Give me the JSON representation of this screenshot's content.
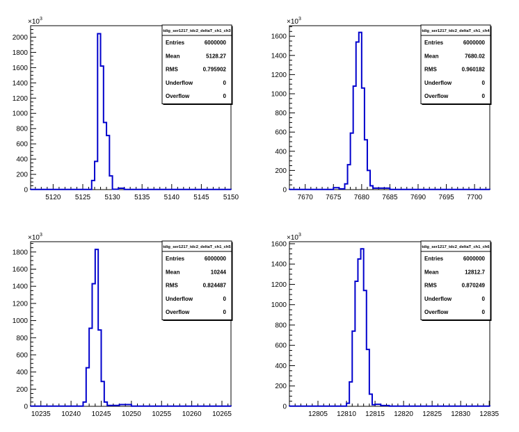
{
  "chart_data": [
    {
      "type": "histogram",
      "stats_title": "tdig_ser1217_tdc2_deltaT_ch1_ch3",
      "stats": [
        {
          "label": "Entries",
          "value": "6000000"
        },
        {
          "label": "Mean",
          "value": "5128.27"
        },
        {
          "label": "RMS",
          "value": "0.795902"
        },
        {
          "label": "Underflow",
          "value": "0"
        },
        {
          "label": "Overflow",
          "value": "0"
        }
      ],
      "y_exponent": "×10",
      "y_exponent_power": "3",
      "xlim": [
        5116.2,
        5150
      ],
      "ylim": [
        0,
        2150
      ],
      "x_ticks": [
        "5120",
        "5125",
        "5130",
        "5135",
        "5140",
        "5145",
        "5150"
      ],
      "y_ticks": [
        "0",
        "200",
        "400",
        "600",
        "800",
        "1000",
        "1200",
        "1400",
        "1600",
        "1800",
        "2000"
      ],
      "bin_edges": [
        5116.2,
        5126.5,
        5127.0,
        5127.5,
        5128.0,
        5128.5,
        5129.0,
        5129.5,
        5130.0,
        5131.0,
        5132.0,
        5150
      ],
      "counts": [
        2,
        120,
        370,
        2045,
        1620,
        880,
        710,
        180,
        4,
        18,
        2
      ]
    },
    {
      "type": "histogram",
      "stats_title": "tdig_ser1217_tdc2_deltaT_ch1_ch4",
      "stats": [
        {
          "label": "Entries",
          "value": "6000000"
        },
        {
          "label": "Mean",
          "value": "7680.02"
        },
        {
          "label": "RMS",
          "value": "0.960182"
        },
        {
          "label": "Underflow",
          "value": "0"
        },
        {
          "label": "Overflow",
          "value": "0"
        }
      ],
      "y_exponent": "×10",
      "y_exponent_power": "3",
      "xlim": [
        7667.2,
        7702.7
      ],
      "ylim": [
        0,
        1710
      ],
      "x_ticks": [
        "7670",
        "7675",
        "7680",
        "7685",
        "7690",
        "7695",
        "7700"
      ],
      "y_ticks": [
        "0",
        "200",
        "400",
        "600",
        "800",
        "1000",
        "1200",
        "1400",
        "1600"
      ],
      "bin_edges": [
        7667.2,
        7675.0,
        7676.0,
        7677.0,
        7677.5,
        7678.0,
        7678.5,
        7679.0,
        7679.5,
        7680.0,
        7680.5,
        7681.0,
        7681.5,
        7682.0,
        7685.0,
        7702.7
      ],
      "counts": [
        2,
        20,
        8,
        60,
        260,
        590,
        1080,
        1540,
        1640,
        1060,
        520,
        200,
        40,
        15,
        2
      ]
    },
    {
      "type": "histogram",
      "stats_title": "tdig_ser1217_tdc2_deltaT_ch1_ch5",
      "stats": [
        {
          "label": "Entries",
          "value": "6000000"
        },
        {
          "label": "Mean",
          "value": "10244"
        },
        {
          "label": "RMS",
          "value": "0.824487"
        },
        {
          "label": "Underflow",
          "value": "0"
        },
        {
          "label": "Overflow",
          "value": "0"
        }
      ],
      "y_exponent": "×10",
      "y_exponent_power": "3",
      "xlim": [
        10233.3,
        10266.5
      ],
      "ylim": [
        0,
        1920
      ],
      "x_ticks": [
        "10235",
        "10240",
        "10245",
        "10250",
        "10255",
        "10260",
        "10265"
      ],
      "y_ticks": [
        "0",
        "200",
        "400",
        "600",
        "800",
        "1000",
        "1200",
        "1400",
        "1600",
        "1800"
      ],
      "bin_edges": [
        10233.3,
        10242.0,
        10242.5,
        10243.0,
        10243.5,
        10244.0,
        10244.5,
        10245.0,
        10245.5,
        10246.0,
        10248.0,
        10250.0,
        10266.5
      ],
      "counts": [
        2,
        50,
        450,
        910,
        1430,
        1830,
        890,
        290,
        50,
        10,
        20,
        2
      ]
    },
    {
      "type": "histogram",
      "stats_title": "tdig_ser1217_tdc2_deltaT_ch1_ch6",
      "stats": [
        {
          "label": "Entries",
          "value": "6000000"
        },
        {
          "label": "Mean",
          "value": "12812.7"
        },
        {
          "label": "RMS",
          "value": "0.870249"
        },
        {
          "label": "Underflow",
          "value": "0"
        },
        {
          "label": "Overflow",
          "value": "0"
        }
      ],
      "y_exponent": "×10",
      "y_exponent_power": "3",
      "xlim": [
        12800,
        12835.1
      ],
      "ylim": [
        0,
        1620
      ],
      "x_ticks": [
        "12805",
        "12810",
        "12815",
        "12820",
        "12825",
        "12830",
        "12835"
      ],
      "y_ticks": [
        "0",
        "200",
        "400",
        "600",
        "800",
        "1000",
        "1200",
        "1400",
        "1600"
      ],
      "bin_edges": [
        12800,
        12810.0,
        12810.5,
        12811.0,
        12811.5,
        12812.0,
        12812.5,
        12813.0,
        12813.5,
        12814.0,
        12814.5,
        12815.0,
        12816.0,
        12817.5,
        12835.1
      ],
      "counts": [
        2,
        30,
        240,
        740,
        1230,
        1450,
        1550,
        1140,
        560,
        120,
        15,
        20,
        8,
        2
      ]
    }
  ]
}
